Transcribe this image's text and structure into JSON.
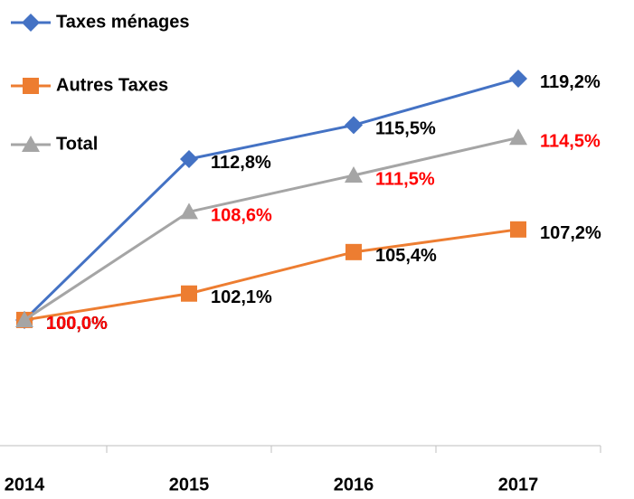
{
  "chart_data": {
    "type": "line",
    "categories": [
      "2014",
      "2015",
      "2016",
      "2017"
    ],
    "series": [
      {
        "name": "Taxes ménages",
        "color": "#4472c4",
        "marker": "diamond",
        "label_color": "#000000",
        "values": [
          100.0,
          112.8,
          115.5,
          119.2
        ],
        "value_labels": [
          "100,0%",
          "112,8%",
          "115,5%",
          "119,2%"
        ]
      },
      {
        "name": "Autres Taxes",
        "color": "#ed7d31",
        "marker": "square",
        "label_color": "#000000",
        "values": [
          100.0,
          102.1,
          105.4,
          107.2
        ],
        "value_labels": [
          "100,0%",
          "102,1%",
          "105,4%",
          "107,2%"
        ]
      },
      {
        "name": "Total",
        "color": "#a5a5a5",
        "marker": "triangle",
        "label_color": "#ff0000",
        "values": [
          100.0,
          108.6,
          111.5,
          114.5
        ],
        "value_labels": [
          "100,0%",
          "108,6%",
          "111,5%",
          "114,5%"
        ]
      }
    ],
    "ylim": [
      90,
      122
    ]
  }
}
